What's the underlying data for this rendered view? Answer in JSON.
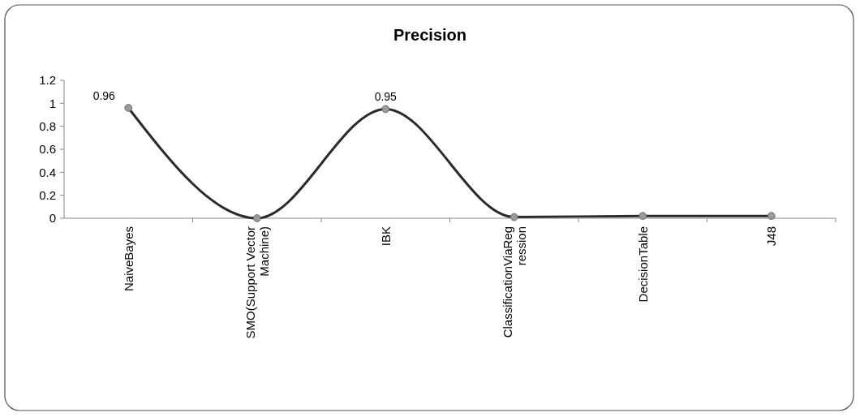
{
  "chart_data": {
    "type": "line",
    "title": "Precision",
    "categories": [
      "NaiveBayes",
      "SMO(Support Vector Machine)",
      "IBK",
      "ClassificationViaRegression",
      "DecisionTable",
      "J48"
    ],
    "series": [
      {
        "color": "#2b2b2b",
        "values": [
          0.96,
          0,
          0.95,
          0.01,
          0.02,
          0.02
        ],
        "value_labels": [
          "0.96",
          null,
          "0.95",
          null,
          null,
          null
        ]
      }
    ],
    "ylim": [
      0,
      1.2
    ],
    "yticks": [
      0,
      0.2,
      0.4,
      0.6,
      0.8,
      1,
      1.2
    ],
    "marker": "circle",
    "line_style": "solid"
  }
}
